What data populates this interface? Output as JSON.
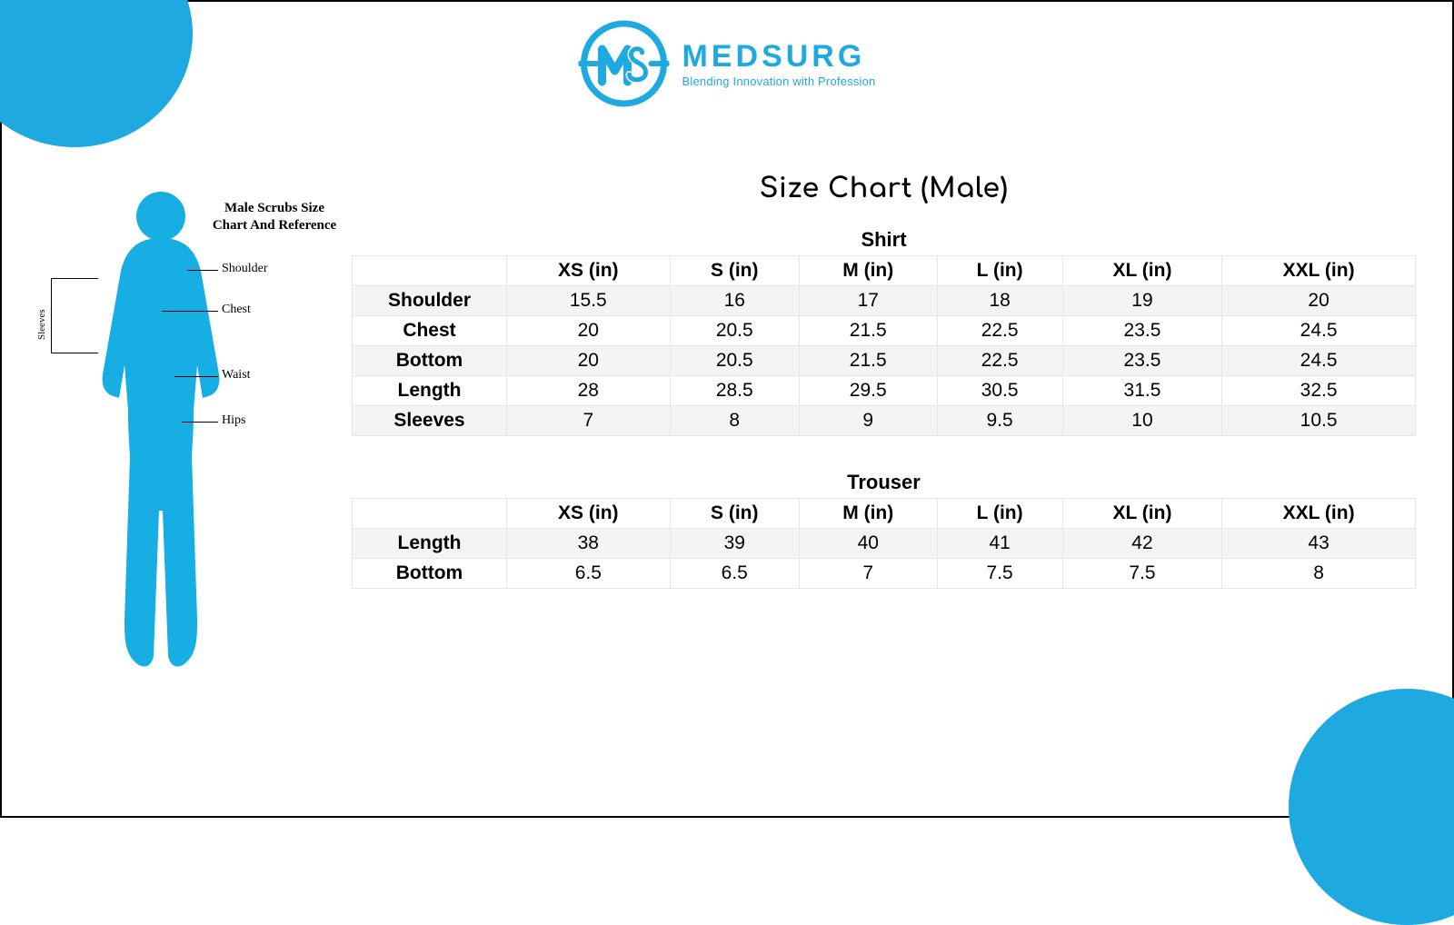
{
  "colors": {
    "accent": "#1ea9e1",
    "silhouette": "#17aee3",
    "table_border": "#e6e6e6",
    "table_stripe": "#f4f4f4",
    "text": "#000000",
    "background": "#ffffff"
  },
  "logo": {
    "title": "MEDSURG",
    "tagline": "Blending Innovation with Profession"
  },
  "page_title": "Size Chart (Male)",
  "diagram": {
    "title": "Male Scrubs Size Chart And Reference",
    "labels": {
      "shoulder": "Shoulder",
      "chest": "Chest",
      "waist": "Waist",
      "hips": "Hips",
      "sleeves": "Sleeves"
    }
  },
  "tables": {
    "size_columns": [
      "XS (in)",
      "S (in)",
      "M (in)",
      "L (in)",
      "XL (in)",
      "XXL (in)"
    ],
    "shirt": {
      "title": "Shirt",
      "rows": [
        {
          "label": "Shoulder",
          "values": [
            "15.5",
            "16",
            "17",
            "18",
            "19",
            "20"
          ]
        },
        {
          "label": "Chest",
          "values": [
            "20",
            "20.5",
            "21.5",
            "22.5",
            "23.5",
            "24.5"
          ]
        },
        {
          "label": "Bottom",
          "values": [
            "20",
            "20.5",
            "21.5",
            "22.5",
            "23.5",
            "24.5"
          ]
        },
        {
          "label": "Length",
          "values": [
            "28",
            "28.5",
            "29.5",
            "30.5",
            "31.5",
            "32.5"
          ]
        },
        {
          "label": "Sleeves",
          "values": [
            "7",
            "8",
            "9",
            "9.5",
            "10",
            "10.5"
          ]
        }
      ]
    },
    "trouser": {
      "title": "Trouser",
      "rows": [
        {
          "label": "Length",
          "values": [
            "38",
            "39",
            "40",
            "41",
            "42",
            "43"
          ]
        },
        {
          "label": "Bottom",
          "values": [
            "6.5",
            "6.5",
            "7",
            "7.5",
            "7.5",
            "8"
          ]
        }
      ]
    }
  }
}
